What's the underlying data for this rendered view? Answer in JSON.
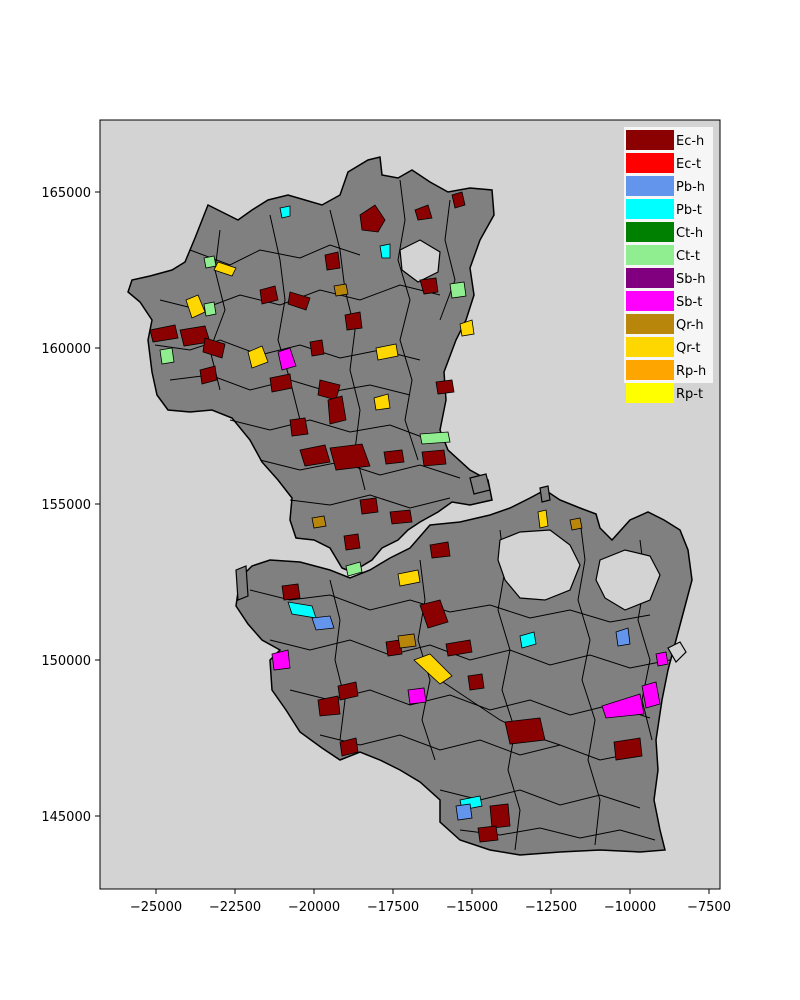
{
  "map": {
    "background_color": "#d3d3d3",
    "base_parcel_color": "#808080",
    "parcel_outline_color": "#000000",
    "x_ticks": [
      "−25000",
      "−22500",
      "−20000",
      "−17500",
      "−15000",
      "−12500",
      "−10000",
      "−7500"
    ],
    "y_ticks": [
      "145000",
      "150000",
      "155000",
      "160000",
      "165000"
    ],
    "x_range": [
      -26800,
      -7000
    ],
    "y_range": [
      142700,
      167300
    ],
    "legend_placement": "top-right",
    "legend": [
      {
        "label": "Ec-h",
        "color": "#8b0000"
      },
      {
        "label": "Ec-t",
        "color": "#ff0000"
      },
      {
        "label": "Pb-h",
        "color": "#6495ed"
      },
      {
        "label": "Pb-t",
        "color": "#00ffff"
      },
      {
        "label": "Ct-h",
        "color": "#008000"
      },
      {
        "label": "Ct-t",
        "color": "#90ee90"
      },
      {
        "label": "Sb-h",
        "color": "#800080"
      },
      {
        "label": "Sb-t",
        "color": "#ff00ff"
      },
      {
        "label": "Qr-h",
        "color": "#b8860b"
      },
      {
        "label": "Qr-t",
        "color": "#ffd700"
      },
      {
        "label": "Rp-h",
        "color": "#ffa500"
      },
      {
        "label": "Rp-t",
        "color": "#ffff00"
      }
    ]
  }
}
